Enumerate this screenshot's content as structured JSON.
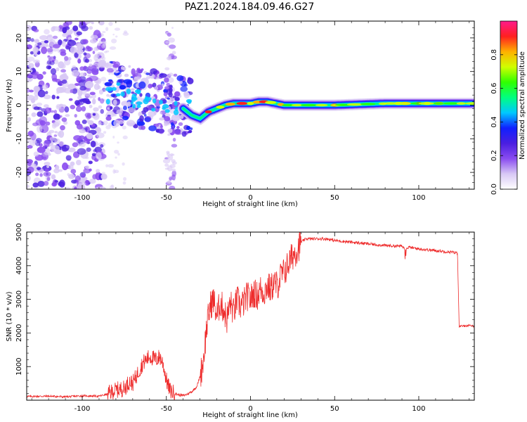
{
  "title": "PAZ1.2024.184.09.46.G27",
  "colors": {
    "snr_line": "#ee2b2b",
    "colormap": [
      "#ffffff",
      "#d8c8f5",
      "#8a4cf0",
      "#4a1fe0",
      "#1020ff",
      "#00c8ff",
      "#00ff80",
      "#30ff00",
      "#d0ff00",
      "#ffb000",
      "#ff2020",
      "#ff1a8c"
    ]
  },
  "chart_data": [
    {
      "type": "heatmap",
      "xlabel": "Height of straight line (km)",
      "ylabel": "Frequency (Hz)",
      "xlim": [
        -133,
        133
      ],
      "ylim": [
        -25,
        25
      ],
      "xticks": [
        -100,
        -50,
        0,
        50,
        100
      ],
      "yticks": [
        -20,
        -10,
        0,
        10,
        20
      ],
      "colorbar": {
        "label": "Normalized spectral amplitude",
        "range": [
          0,
          1
        ],
        "ticks": [
          0.0,
          0.2,
          0.4,
          0.6,
          0.8
        ]
      },
      "ridge_frequency": {
        "x": [
          -90,
          -85,
          -80,
          -75,
          -70,
          -65,
          -60,
          -55,
          -50,
          -45,
          -40,
          -35,
          -30,
          -25,
          -20,
          -15,
          -10,
          -5,
          0,
          5,
          10,
          15,
          20,
          30,
          50,
          80,
          100,
          133
        ],
        "y": [
          4,
          5,
          4,
          3,
          1,
          0,
          -1,
          -1,
          0,
          -2,
          -1,
          -3,
          -4,
          -2,
          -1,
          0,
          0.5,
          0.5,
          0.5,
          1,
          1,
          0.5,
          0,
          0,
          0,
          0.5,
          0.5,
          0.5
        ]
      }
    },
    {
      "type": "line",
      "xlabel": "Height of straight line (km)",
      "ylabel": "SNR (10 * v/v)",
      "xlim": [
        -133,
        133
      ],
      "ylim": [
        0,
        5000
      ],
      "xticks": [
        -100,
        -50,
        0,
        50,
        100
      ],
      "yticks": [
        1000,
        2000,
        3000,
        4000,
        5000
      ],
      "series": [
        {
          "x": [
            -133,
            -120,
            -110,
            -100,
            -90,
            -85,
            -80,
            -75,
            -72,
            -70,
            -68,
            -66,
            -64,
            -62,
            -60,
            -58,
            -56,
            -54,
            -52,
            -50,
            -48,
            -45,
            -42,
            -40,
            -38,
            -35,
            -32,
            -30,
            -28,
            -26,
            -24,
            -22,
            -20,
            -18,
            -16,
            -14,
            -12,
            -10,
            -8,
            -6,
            -4,
            -2,
            0,
            2,
            4,
            6,
            8,
            10,
            12,
            14,
            16,
            18,
            20,
            22,
            25,
            28,
            30,
            33,
            35,
            40,
            45,
            50,
            60,
            70,
            80,
            90,
            92,
            94,
            100,
            110,
            120,
            123,
            124,
            125,
            130,
            133
          ],
          "y": [
            110,
            120,
            100,
            130,
            120,
            180,
            300,
            350,
            550,
            500,
            700,
            900,
            1100,
            1200,
            1300,
            1250,
            1200,
            1300,
            1100,
            600,
            300,
            200,
            150,
            140,
            170,
            250,
            400,
            700,
            1200,
            2200,
            2800,
            3000,
            2500,
            2900,
            2700,
            2400,
            2900,
            2600,
            3000,
            2800,
            2900,
            3100,
            3000,
            3200,
            3100,
            3300,
            3200,
            3400,
            3300,
            3500,
            3400,
            3700,
            3800,
            4000,
            4300,
            4500,
            4700,
            4800,
            4800,
            4800,
            4800,
            4750,
            4700,
            4650,
            4600,
            4580,
            4500,
            4550,
            4500,
            4450,
            4400,
            4380,
            2200,
            2200,
            2220,
            2200
          ]
        }
      ]
    }
  ]
}
